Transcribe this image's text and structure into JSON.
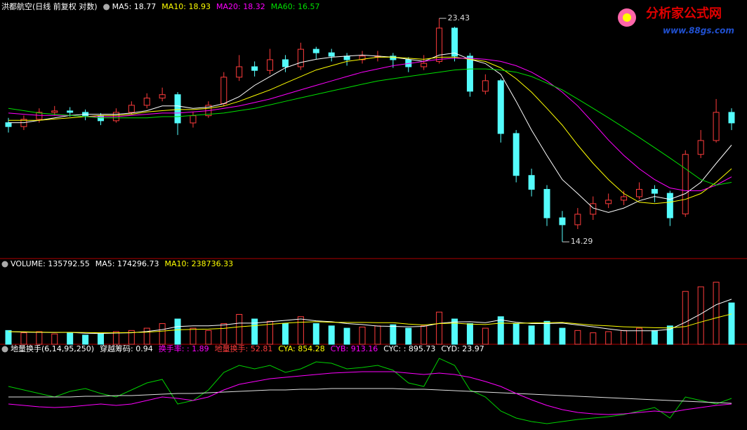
{
  "chart_data": [
    {
      "type": "candlestick",
      "title": "洪都航空(日线 前复权 对数)",
      "log_scale": true,
      "ylim": [
        13.9,
        23.8
      ],
      "up_color": "#ff3c3c",
      "down_color": "#54fcfc",
      "open": [
        18.6,
        18.44,
        18.74,
        19.03,
        19.09,
        19.03,
        18.89,
        18.68,
        19.03,
        19.33,
        19.64,
        19.79,
        18.59,
        18.89,
        19.4,
        20.57,
        21.05,
        20.88,
        21.38,
        21.05,
        21.88,
        21.71,
        21.55,
        21.38,
        21.55,
        21.55,
        21.38,
        21.05,
        21.3,
        22.93,
        21.55,
        19.94,
        20.41,
        18.16,
        16.55,
        16.05,
        15.07,
        14.84,
        15.19,
        15.55,
        15.67,
        15.79,
        16.05,
        15.91,
        15.2,
        17.34,
        17.88,
        19.03
      ],
      "high": [
        18.8,
        18.9,
        19.2,
        19.3,
        19.25,
        19.15,
        19.0,
        19.2,
        19.5,
        19.85,
        20.1,
        19.9,
        19.05,
        19.5,
        20.8,
        21.6,
        21.3,
        21.9,
        21.6,
        22.2,
        22.0,
        21.9,
        21.7,
        21.8,
        21.8,
        21.7,
        21.5,
        21.6,
        23.43,
        23.0,
        21.7,
        20.7,
        20.5,
        18.3,
        16.8,
        16.2,
        15.3,
        15.4,
        15.8,
        15.9,
        16.0,
        16.3,
        16.2,
        16.0,
        17.5,
        18.3,
        19.6,
        19.2
      ],
      "low": [
        18.2,
        18.3,
        18.6,
        18.9,
        18.85,
        18.7,
        18.5,
        18.6,
        18.95,
        19.2,
        19.5,
        18.1,
        18.4,
        18.8,
        19.3,
        20.4,
        20.6,
        20.7,
        20.8,
        20.9,
        21.4,
        21.3,
        21.1,
        21.2,
        21.3,
        21.0,
        20.8,
        20.9,
        21.2,
        21.3,
        19.7,
        19.8,
        17.8,
        16.3,
        15.8,
        14.8,
        14.29,
        14.7,
        15.0,
        15.4,
        15.5,
        15.7,
        15.6,
        14.8,
        15.1,
        17.2,
        17.8,
        18.3
      ],
      "close": [
        18.44,
        18.74,
        19.03,
        19.09,
        19.03,
        18.89,
        18.68,
        19.03,
        19.33,
        19.64,
        19.79,
        18.59,
        18.89,
        19.33,
        20.57,
        21.05,
        20.88,
        21.38,
        21.05,
        21.88,
        21.71,
        21.55,
        21.38,
        21.55,
        21.55,
        21.38,
        21.05,
        21.21,
        22.93,
        21.55,
        19.94,
        20.41,
        18.16,
        16.55,
        16.05,
        15.07,
        14.84,
        15.19,
        15.55,
        15.67,
        15.79,
        16.05,
        15.91,
        15.07,
        17.34,
        17.88,
        19.03,
        18.59
      ],
      "series": [
        {
          "name": "MA5: 18.77",
          "color": "#ffffff",
          "values": [
            18.6,
            18.6,
            18.7,
            18.8,
            18.9,
            18.95,
            18.95,
            18.95,
            19.0,
            19.1,
            19.3,
            19.3,
            19.2,
            19.25,
            19.4,
            19.7,
            20.2,
            20.6,
            21.0,
            21.25,
            21.4,
            21.5,
            21.55,
            21.6,
            21.55,
            21.5,
            21.4,
            21.3,
            21.6,
            21.7,
            21.4,
            21.2,
            20.7,
            19.5,
            18.3,
            17.3,
            16.4,
            15.9,
            15.4,
            15.25,
            15.4,
            15.65,
            15.8,
            15.7,
            15.9,
            16.3,
            17.0,
            17.7
          ]
        },
        {
          "name": "MA10: 18.93",
          "color": "#ffff00",
          "values": [
            18.7,
            18.7,
            18.7,
            18.75,
            18.8,
            18.85,
            18.9,
            18.9,
            18.95,
            19.05,
            19.1,
            19.15,
            19.15,
            19.2,
            19.3,
            19.5,
            19.75,
            20.0,
            20.3,
            20.6,
            20.9,
            21.1,
            21.3,
            21.4,
            21.5,
            21.5,
            21.45,
            21.4,
            21.5,
            21.5,
            21.4,
            21.3,
            21.0,
            20.5,
            19.9,
            19.2,
            18.5,
            17.7,
            17.0,
            16.4,
            15.9,
            15.6,
            15.55,
            15.6,
            15.7,
            15.9,
            16.3,
            16.8
          ]
        },
        {
          "name": "MA20: 18.32",
          "color": "#ff00ff",
          "values": [
            19.0,
            18.95,
            18.9,
            18.9,
            18.9,
            18.85,
            18.85,
            18.85,
            18.9,
            18.95,
            19.0,
            19.0,
            19.05,
            19.1,
            19.2,
            19.3,
            19.45,
            19.6,
            19.8,
            20.0,
            20.2,
            20.4,
            20.6,
            20.8,
            20.95,
            21.1,
            21.2,
            21.3,
            21.4,
            21.45,
            21.45,
            21.4,
            21.3,
            21.1,
            20.8,
            20.4,
            19.9,
            19.3,
            18.6,
            17.9,
            17.3,
            16.8,
            16.4,
            16.1,
            16.0,
            16.0,
            16.2,
            16.5
          ]
        },
        {
          "name": "MA60: 16.57",
          "color": "#00e000",
          "values": [
            19.2,
            19.1,
            19.0,
            18.95,
            18.9,
            18.85,
            18.8,
            18.8,
            18.8,
            18.8,
            18.85,
            18.85,
            18.9,
            18.95,
            19.0,
            19.1,
            19.2,
            19.35,
            19.5,
            19.65,
            19.8,
            19.95,
            20.1,
            20.25,
            20.4,
            20.5,
            20.6,
            20.7,
            20.8,
            20.9,
            20.95,
            20.95,
            20.9,
            20.8,
            20.6,
            20.3,
            20.0,
            19.6,
            19.2,
            18.8,
            18.4,
            18.0,
            17.6,
            17.2,
            16.8,
            16.4,
            16.2,
            16.3
          ]
        }
      ],
      "annotations": [
        {
          "value": 23.43
        },
        {
          "value": 14.29
        }
      ]
    },
    {
      "type": "bar",
      "title": "VOLUME: 135792.55",
      "ylim": [
        0,
        330000
      ],
      "values": [
        60000,
        50000,
        55000,
        45000,
        50000,
        40000,
        45000,
        55000,
        60000,
        70000,
        90000,
        110000,
        70000,
        60000,
        90000,
        130000,
        110000,
        100000,
        90000,
        120000,
        90000,
        80000,
        70000,
        75000,
        80000,
        85000,
        70000,
        80000,
        140000,
        110000,
        90000,
        70000,
        120000,
        90000,
        80000,
        100000,
        70000,
        60000,
        50000,
        55000,
        60000,
        70000,
        60000,
        80000,
        230000,
        250000,
        270000,
        180000
      ],
      "series": [
        {
          "name": "MA5: 174296.73",
          "color": "#ffffff",
          "values": [
            55000,
            53000,
            52000,
            51000,
            52000,
            48000,
            47000,
            49000,
            50000,
            56000,
            64000,
            77000,
            80000,
            80000,
            84000,
            92000,
            92000,
            98000,
            104000,
            110000,
            102000,
            98000,
            90000,
            86000,
            79000,
            78000,
            76000,
            78000,
            91000,
            97000,
            98000,
            94000,
            106000,
            96000,
            90000,
            90000,
            92000,
            84000,
            76000,
            67000,
            59000,
            59000,
            59000,
            65000,
            96000,
            132000,
            172000,
            196000
          ]
        },
        {
          "name": "MA10: 238736.33",
          "color": "#ffff00",
          "values": [
            55000,
            54000,
            53000,
            52000,
            52000,
            51000,
            50000,
            50000,
            51000,
            53000,
            57000,
            63000,
            65000,
            66000,
            69000,
            76000,
            81000,
            87000,
            92000,
            96000,
            98000,
            96000,
            95000,
            95000,
            94000,
            94000,
            88000,
            84000,
            90000,
            92000,
            88000,
            86000,
            92000,
            91000,
            93000,
            94000,
            95000,
            89000,
            83000,
            80000,
            76000,
            74000,
            72000,
            71000,
            77000,
            97000,
            115000,
            132000
          ]
        }
      ]
    },
    {
      "type": "line",
      "title": "地量换手(6,14,95,250)",
      "ylim": [
        0,
        100
      ],
      "legend": [
        {
          "text": "穿越筹码: 0.94",
          "color": "#ffffff"
        },
        {
          "text": "换手率: : 1.89",
          "color": "#ff00ff"
        },
        {
          "text": "地量换手: 52.81",
          "color": "#ff3c3c"
        },
        {
          "text": "CYA: 854.28",
          "color": "#ffff00"
        },
        {
          "text": "CYB: 913.16",
          "color": "#ff00ff"
        },
        {
          "text": "CYC: : 895.73",
          "color": "#ffffff"
        },
        {
          "text": "CYD: 23.97",
          "color": "#ffffff"
        }
      ],
      "series": [
        {
          "color": "#00d000",
          "values": [
            55,
            50,
            45,
            40,
            48,
            52,
            45,
            40,
            50,
            60,
            65,
            30,
            35,
            50,
            75,
            85,
            80,
            85,
            75,
            80,
            90,
            88,
            80,
            82,
            85,
            78,
            60,
            55,
            95,
            85,
            50,
            40,
            20,
            10,
            5,
            2,
            5,
            8,
            10,
            12,
            15,
            20,
            25,
            10,
            40,
            35,
            30,
            38
          ]
        },
        {
          "color": "#e0e0e0",
          "values": [
            40,
            40,
            40,
            40,
            40,
            41,
            41,
            42,
            42,
            43,
            44,
            45,
            45,
            46,
            47,
            48,
            49,
            50,
            50,
            51,
            51,
            52,
            52,
            52,
            52,
            52,
            51,
            51,
            50,
            49,
            48,
            47,
            46,
            45,
            44,
            43,
            42,
            41,
            40,
            39,
            38,
            37,
            36,
            35,
            34,
            33,
            32,
            31
          ]
        },
        {
          "color": "#ff00ff",
          "values": [
            30,
            28,
            26,
            25,
            26,
            28,
            30,
            28,
            30,
            35,
            40,
            38,
            35,
            40,
            50,
            58,
            62,
            66,
            68,
            70,
            72,
            74,
            75,
            76,
            76,
            76,
            74,
            72,
            74,
            72,
            68,
            62,
            55,
            45,
            36,
            28,
            22,
            18,
            16,
            15,
            16,
            18,
            20,
            18,
            22,
            25,
            28,
            30
          ]
        }
      ]
    }
  ],
  "logo": {
    "title": "分析家公式网",
    "url": "www.88gs.com"
  }
}
